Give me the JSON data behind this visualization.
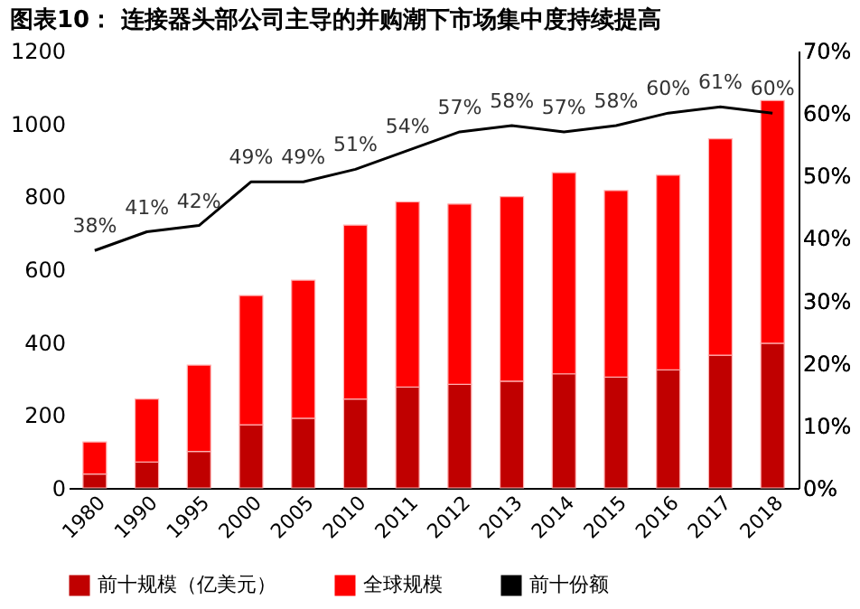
{
  "chart_data": {
    "type": "bar",
    "title": "图表10： 连接器头部公司主导的并购潮下市场集中度持续提高",
    "categories": [
      "1980",
      "1990",
      "1995",
      "2000",
      "2005",
      "2010",
      "2011",
      "2012",
      "2013",
      "2014",
      "2015",
      "2016",
      "2017",
      "2018"
    ],
    "stacked": true,
    "series": [
      {
        "name": "前十规模（亿美元）",
        "color": "#c00000",
        "values": [
          38,
          71,
          100,
          173,
          191,
          244,
          277,
          284,
          293,
          313,
          304,
          324,
          364,
          397
        ]
      },
      {
        "name": "全球规模",
        "color": "#ff0000",
        "values": [
          88,
          173,
          237,
          355,
          379,
          477,
          508,
          495,
          506,
          552,
          512,
          534,
          594,
          666
        ]
      },
      {
        "name": "前十份额",
        "type": "line",
        "axis": "y2",
        "color": "#000000",
        "values": [
          38,
          41,
          42,
          49,
          49,
          51,
          54,
          57,
          58,
          57,
          58,
          60,
          61,
          60
        ],
        "value_labels": [
          "38%",
          "41%",
          "42%",
          "49%",
          "49%",
          "51%",
          "54%",
          "57%",
          "58%",
          "57%",
          "58%",
          "60%",
          "61%",
          "60%"
        ]
      }
    ],
    "ylim": [
      0,
      1200
    ],
    "yticks": [
      0,
      200,
      400,
      600,
      800,
      1000,
      1200
    ],
    "y2lim": [
      0,
      70
    ],
    "y2ticks": [
      {
        "value": 0,
        "label": "0%"
      },
      {
        "value": 10,
        "label": "10%"
      },
      {
        "value": 20,
        "label": "20%"
      },
      {
        "value": 30,
        "label": "30%"
      },
      {
        "value": 40,
        "label": "40%"
      },
      {
        "value": 50,
        "label": "50%"
      },
      {
        "value": 60,
        "label": "60%"
      },
      {
        "value": 70,
        "label": "70%"
      }
    ],
    "grid": false,
    "legend": "bottom"
  }
}
